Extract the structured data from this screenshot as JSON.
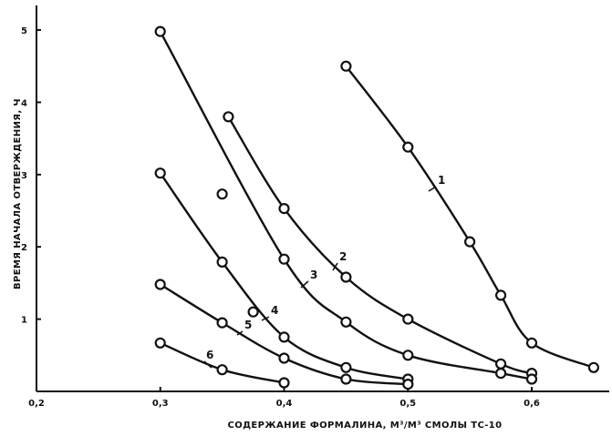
{
  "chart_data": {
    "type": "scatter",
    "xlabel": "СОДЕРЖАНИЕ ФОРМАЛИНА, М³/М³ СМОЛЫ ТС-10",
    "ylabel": "ВРЕМЯ НАЧАЛА ОТВЕРЖДЕНИЯ, Ч",
    "xlim": [
      0.2,
      0.66
    ],
    "ylim": [
      0,
      5.2
    ],
    "x_ticks": [
      0.2,
      0.3,
      0.4,
      0.5,
      0.6
    ],
    "x_tick_labels": [
      "0,2",
      "0,3",
      "0,4",
      "0,5",
      "0,6"
    ],
    "y_ticks": [
      1,
      2,
      3,
      4,
      5
    ],
    "y_tick_labels": [
      "1",
      "2",
      "3",
      "4",
      "5"
    ],
    "grid": false,
    "series": [
      {
        "name": "1",
        "x": [
          0.45,
          0.5,
          0.55,
          0.575,
          0.6,
          0.65
        ],
        "y": [
          4.5,
          3.38,
          2.07,
          1.33,
          0.67,
          0.33
        ]
      },
      {
        "name": "2",
        "x": [
          0.355,
          0.4,
          0.45,
          0.5,
          0.575,
          0.6
        ],
        "y": [
          3.8,
          2.53,
          1.58,
          1.0,
          0.38,
          0.25
        ]
      },
      {
        "name": "3",
        "x": [
          0.3,
          0.35,
          0.4,
          0.45,
          0.5,
          0.575,
          0.6
        ],
        "y": [
          4.98,
          2.73,
          1.83,
          0.96,
          0.5,
          0.25,
          0.17
        ]
      },
      {
        "name": "4",
        "x": [
          0.3,
          0.35,
          0.4,
          0.45,
          0.5
        ],
        "y": [
          3.02,
          1.79,
          0.75,
          0.33,
          0.17
        ]
      },
      {
        "name": "5",
        "x": [
          0.3,
          0.35,
          0.375,
          0.4,
          0.45,
          0.5
        ],
        "y": [
          1.48,
          0.95,
          1.1,
          0.46,
          0.17,
          0.1
        ]
      },
      {
        "name": "6",
        "x": [
          0.3,
          0.35,
          0.4
        ],
        "y": [
          0.67,
          0.3,
          0.12
        ]
      }
    ]
  }
}
